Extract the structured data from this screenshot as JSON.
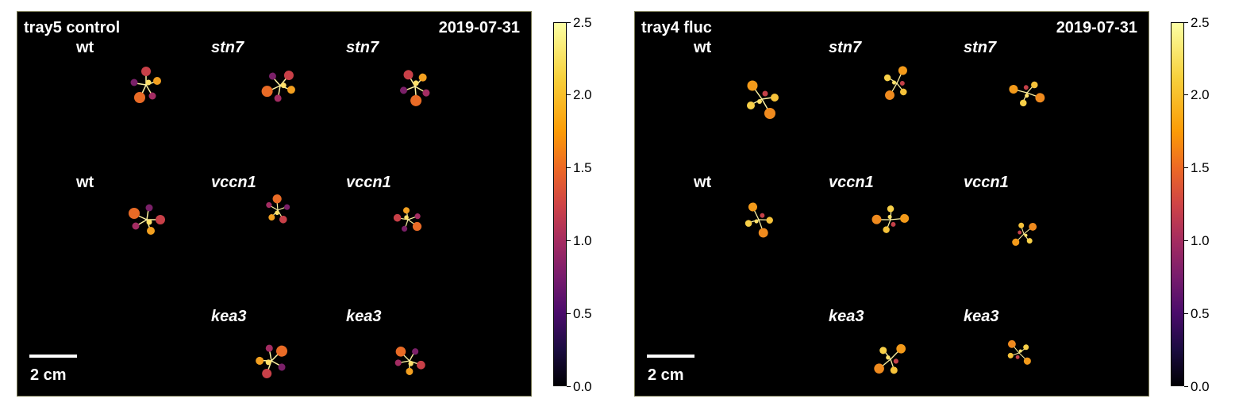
{
  "panels": [
    {
      "title": "tray5 control",
      "date": "2019-07-31",
      "scale_label": "2 cm",
      "labels": {
        "r1c1": "wt",
        "r1c2": "stn7",
        "r1c3": "stn7",
        "r2c1": "wt",
        "r2c2": "vccn1",
        "r2c3": "vccn1",
        "r3c2": "kea3",
        "r3c3": "kea3"
      }
    },
    {
      "title": "tray4 fluc",
      "date": "2019-07-31",
      "scale_label": "2 cm",
      "labels": {
        "r1c1": "wt",
        "r1c2": "stn7",
        "r1c3": "stn7",
        "r2c1": "wt",
        "r2c2": "vccn1",
        "r2c3": "vccn1",
        "r3c2": "kea3",
        "r3c3": "kea3"
      }
    }
  ],
  "colorbar": {
    "colormap": "inferno",
    "range": [
      0.0,
      2.5
    ],
    "ticks": [
      "0.0",
      "0.5",
      "1.0",
      "1.5",
      "2.0",
      "2.5"
    ]
  },
  "colors": {
    "background": "#000000",
    "text": "#ffffff",
    "panel_border": "#7a7a55"
  }
}
